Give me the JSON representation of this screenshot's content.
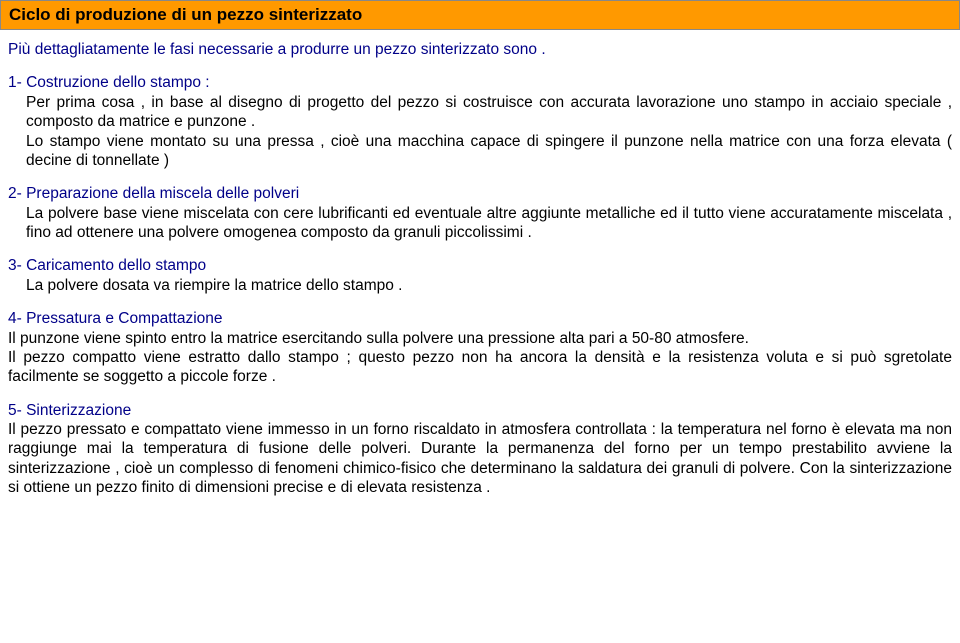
{
  "colors": {
    "header_bg": "#ff9900",
    "title_text": "#000088",
    "body_text": "#000000",
    "page_bg": "#ffffff"
  },
  "typography": {
    "font_family": "Arial",
    "header_fontsize_pt": 13,
    "body_fontsize_pt": 12,
    "header_weight": "bold"
  },
  "header": {
    "title": "Ciclo di produzione di un pezzo sinterizzato"
  },
  "intro": "Più dettagliatamente  le fasi necessarie a produrre un pezzo sinterizzato sono .",
  "sections": [
    {
      "title": "1- Costruzione dello stampo :",
      "body1": "Per prima cosa , in base al disegno di progetto del pezzo si costruisce  con accurata lavorazione uno stampo   in acciaio speciale , composto da matrice e punzone .",
      "body2": "Lo stampo viene montato su una pressa , cioè una macchina  capace di spingere il punzone nella matrice con una forza elevata  ( decine di tonnellate )",
      "indent": true
    },
    {
      "title": "2- Preparazione della miscela delle polveri",
      "body1": "La polvere base viene miscelata con cere lubrificanti ed eventuale altre aggiunte metalliche ed il tutto viene accuratamente miscelata , fino ad ottenere una polvere omogenea composto da granuli piccolissimi .",
      "indent": true
    },
    {
      "title": "3- Caricamento dello stampo",
      "body1": "La polvere  dosata va  riempire la matrice dello stampo .",
      "indent": true
    },
    {
      "title": "4- Pressatura e Compattazione",
      "body1": "Il punzone viene spinto entro la matrice esercitando sulla polvere una pressione  alta pari a 50-80 atmosfere.",
      "body2": "Il pezzo compatto viene estratto dallo stampo ; questo pezzo non ha ancora la densità e la resistenza voluta e si può sgretolate facilmente  se soggetto a piccole forze .",
      "indent": false
    },
    {
      "title": "5- Sinterizzazione",
      "body1": "Il pezzo pressato e compattato viene immesso in un forno riscaldato in atmosfera controllata : la temperatura nel forno è elevata ma non raggiunge mai la temperatura di fusione delle polveri. Durante la permanenza del forno per un tempo prestabilito avviene la  sinterizzazione , cioè un complesso di fenomeni chimico-fisico che determinano la saldatura dei granuli di polvere.  Con la sinterizzazione si ottiene un pezzo finito di dimensioni precise e di elevata resistenza .",
      "indent": false
    }
  ]
}
